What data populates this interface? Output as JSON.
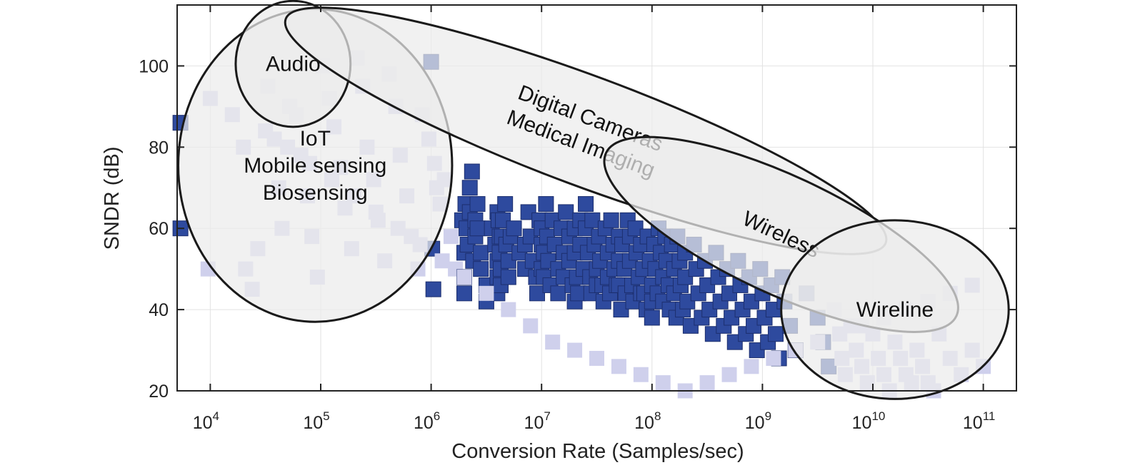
{
  "colors": {
    "point_fill": "#2e4a9e",
    "point_stroke": "#1d2f6e",
    "point_faded": "#cfd0ec",
    "ellipse_fill": "#ebebeb",
    "ellipse_stroke": "#1a1a1a",
    "grid": "#e2e2e2",
    "axis": "#222222"
  },
  "chart_data": {
    "type": "scatter",
    "title": "",
    "xlabel": "Conversion Rate (Samples/sec)",
    "ylabel": "SNDR (dB)",
    "xscale": "log",
    "xlim_log10": [
      3.7,
      11.3
    ],
    "ylim": [
      20,
      115
    ],
    "grid": true,
    "marker": "square",
    "xticks": [
      {
        "base": "10",
        "exp": "4",
        "log10": 4
      },
      {
        "base": "10",
        "exp": "5",
        "log10": 5
      },
      {
        "base": "10",
        "exp": "6",
        "log10": 6
      },
      {
        "base": "10",
        "exp": "7",
        "log10": 7
      },
      {
        "base": "10",
        "exp": "8",
        "log10": 8
      },
      {
        "base": "10",
        "exp": "9",
        "log10": 9
      },
      {
        "base": "10",
        "exp": "10",
        "log10": 10
      },
      {
        "base": "10",
        "exp": "11",
        "log10": 11
      }
    ],
    "yticks": [
      {
        "label": "20",
        "value": 20
      },
      {
        "label": "40",
        "value": 40
      },
      {
        "label": "60",
        "value": 60
      },
      {
        "label": "80",
        "value": 80
      },
      {
        "label": "100",
        "value": 100
      }
    ],
    "regions": [
      {
        "name": "iot",
        "lines": [
          "IoT",
          "Mobile sensing",
          "Biosensing"
        ],
        "center_log10x": 4.95,
        "center_y": 75.5,
        "radius_decades": 1.24,
        "radius_db": 38.5,
        "angle_deg": 0
      },
      {
        "name": "audio",
        "lines": [
          "Audio"
        ],
        "center_log10x": 4.75,
        "center_y": 100.5,
        "radius_decades": 0.52,
        "radius_db": 15.5,
        "angle_deg": 0
      },
      {
        "name": "cameras",
        "lines": [
          "Digital Cameras",
          "Medical Imaging"
        ],
        "center_log10x": 7.4,
        "center_y": 84,
        "radius_decades": 2.9,
        "radius_db": 13.5,
        "angle_deg": 20.5
      },
      {
        "name": "wireless",
        "lines": [
          "Wireless"
        ],
        "center_log10x": 9.17,
        "center_y": 58.5,
        "radius_decades": 1.75,
        "radius_db": 14.5,
        "angle_deg": 25
      },
      {
        "name": "wireline",
        "lines": [
          "Wireline"
        ],
        "center_log10x": 10.2,
        "center_y": 40,
        "radius_decades": 1.03,
        "radius_db": 22,
        "angle_deg": 0
      }
    ],
    "points_log10x": [
      3.73,
      3.73,
      3.98,
      4.3,
      4.32,
      4.38,
      4.43,
      4.52,
      4.58,
      4.62,
      4.65,
      4.72,
      4.78,
      4.82,
      4.88,
      4.92,
      4.97,
      5.02,
      5.08,
      5.12,
      5.18,
      5.22,
      5.28,
      5.33,
      5.38,
      5.42,
      5.48,
      5.52,
      5.58,
      5.62,
      5.68,
      5.72,
      5.78,
      5.82,
      5.88,
      5.92,
      5.98,
      6.0,
      6.01,
      6.02,
      6.03,
      6.05,
      6.08,
      6.12,
      6.18,
      6.22,
      6.28,
      6.3,
      6.3,
      6.3,
      6.31,
      6.32,
      6.33,
      6.35,
      6.35,
      6.37,
      6.38,
      6.4,
      6.4,
      6.42,
      6.42,
      6.45,
      6.45,
      6.5,
      6.5,
      6.55,
      6.58,
      6.6,
      6.6,
      6.6,
      6.6,
      6.61,
      6.62,
      6.62,
      6.63,
      6.63,
      6.64,
      6.65,
      6.67,
      6.68,
      6.7,
      6.7,
      6.72,
      6.75,
      6.8,
      6.85,
      6.85,
      6.88,
      6.9,
      6.92,
      6.95,
      6.96,
      6.98,
      7.0,
      7.0,
      7.0,
      7.02,
      7.02,
      7.04,
      7.05,
      7.06,
      7.08,
      7.1,
      7.12,
      7.15,
      7.15,
      7.18,
      7.2,
      7.2,
      7.22,
      7.25,
      7.25,
      7.28,
      7.3,
      7.3,
      7.3,
      7.32,
      7.33,
      7.35,
      7.35,
      7.38,
      7.4,
      7.4,
      7.42,
      7.44,
      7.45,
      7.46,
      7.48,
      7.5,
      7.5,
      7.52,
      7.53,
      7.55,
      7.56,
      7.58,
      7.6,
      7.6,
      7.62,
      7.63,
      7.65,
      7.66,
      7.68,
      7.7,
      7.7,
      7.7,
      7.72,
      7.73,
      7.75,
      7.76,
      7.78,
      7.8,
      7.8,
      7.82,
      7.83,
      7.85,
      7.86,
      7.88,
      7.9,
      7.9,
      7.92,
      7.93,
      7.95,
      7.96,
      7.98,
      8.0,
      8.0,
      8.0,
      8.02,
      8.03,
      8.05,
      8.06,
      8.08,
      8.1,
      8.1,
      8.12,
      8.13,
      8.15,
      8.16,
      8.18,
      8.2,
      8.2,
      8.22,
      8.23,
      8.25,
      8.26,
      8.28,
      8.3,
      8.3,
      8.32,
      8.35,
      8.38,
      8.4,
      8.42,
      8.45,
      8.48,
      8.5,
      8.52,
      8.55,
      8.58,
      8.6,
      8.62,
      8.65,
      8.68,
      8.7,
      8.72,
      8.75,
      8.78,
      8.8,
      8.82,
      8.85,
      8.88,
      8.9,
      8.92,
      8.95,
      8.98,
      9.0,
      9.02,
      9.05,
      9.08,
      9.1,
      9.12,
      9.15,
      9.18,
      9.2,
      9.25,
      9.3,
      9.4,
      9.5,
      9.55,
      9.6,
      9.65,
      9.7,
      9.72,
      9.75,
      9.8,
      9.85,
      9.9,
      9.95,
      10.0,
      10.05,
      10.1,
      10.15,
      10.2,
      10.25,
      10.3,
      10.35,
      10.4,
      10.45,
      10.5,
      10.55,
      10.6,
      10.7,
      10.8,
      10.9,
      11.0,
      4.0,
      4.2,
      4.5,
      4.7,
      4.9,
      5.1,
      5.3,
      5.5,
      5.7,
      5.9,
      6.1,
      6.3,
      6.5,
      6.7,
      6.9,
      7.1,
      7.3,
      7.5,
      7.7,
      7.9,
      8.1,
      8.3,
      8.5,
      8.7,
      8.9,
      9.1,
      9.3,
      9.5,
      9.7,
      9.9,
      10.1,
      10.3,
      10.5,
      10.7,
      10.9
    ],
    "points_y": [
      86,
      60,
      50,
      80,
      50,
      45,
      55,
      95,
      82,
      70,
      60,
      90,
      88,
      78,
      68,
      58,
      48,
      100,
      92,
      85,
      75,
      65,
      55,
      102,
      95,
      80,
      72,
      62,
      52,
      98,
      90,
      78,
      68,
      58,
      50,
      88,
      82,
      101,
      55,
      45,
      76,
      70,
      66,
      72,
      58,
      50,
      62,
      54,
      48,
      44,
      66,
      60,
      56,
      70,
      64,
      74,
      52,
      58,
      62,
      66,
      60,
      54,
      50,
      46,
      42,
      60,
      56,
      64,
      52,
      48,
      44,
      62,
      58,
      54,
      50,
      46,
      58,
      62,
      66,
      56,
      52,
      48,
      58,
      60,
      54,
      50,
      56,
      64,
      58,
      52,
      48,
      44,
      62,
      56,
      50,
      60,
      54,
      48,
      66,
      58,
      52,
      46,
      62,
      56,
      50,
      44,
      60,
      54,
      48,
      64,
      58,
      52,
      46,
      42,
      60,
      54,
      48,
      44,
      62,
      56,
      50,
      66,
      60,
      54,
      48,
      44,
      62,
      56,
      50,
      46,
      58,
      52,
      46,
      42,
      60,
      54,
      48,
      44,
      62,
      56,
      50,
      46,
      58,
      52,
      46,
      40,
      56,
      50,
      44,
      62,
      58,
      52,
      46,
      42,
      60,
      54,
      48,
      44,
      56,
      50,
      44,
      40,
      58,
      52,
      46,
      42,
      38,
      56,
      50,
      44,
      60,
      54,
      48,
      42,
      58,
      52,
      46,
      40,
      56,
      50,
      44,
      38,
      58,
      52,
      46,
      40,
      54,
      48,
      42,
      36,
      56,
      50,
      44,
      38,
      52,
      46,
      40,
      34,
      54,
      48,
      42,
      36,
      50,
      44,
      38,
      32,
      52,
      46,
      40,
      34,
      48,
      42,
      36,
      30,
      50,
      44,
      38,
      32,
      46,
      40,
      34,
      28,
      48,
      42,
      36,
      30,
      44,
      38,
      32,
      26,
      40,
      34,
      28,
      24,
      36,
      30,
      26,
      22,
      34,
      28,
      24,
      20,
      32,
      28,
      24,
      22,
      30,
      26,
      22,
      20,
      34,
      28,
      24,
      30,
      26,
      92,
      88,
      84,
      80,
      76,
      72,
      68,
      64,
      60,
      56,
      52,
      48,
      44,
      40,
      36,
      32,
      30,
      28,
      26,
      24,
      22,
      20,
      22,
      24,
      26,
      28,
      30,
      32,
      34,
      36,
      38,
      40,
      42,
      44,
      46
    ],
    "points_faded_flags": [
      0,
      0,
      1,
      1,
      1,
      1,
      1,
      1,
      1,
      1,
      1,
      1,
      1,
      1,
      1,
      1,
      1,
      1,
      1,
      1,
      1,
      1,
      1,
      1,
      1,
      1,
      1,
      1,
      1,
      1,
      1,
      1,
      1,
      1,
      1,
      1,
      1,
      0,
      0,
      0,
      1,
      1,
      1,
      1,
      1,
      1,
      0,
      0,
      0,
      0,
      0,
      0,
      0,
      0,
      0,
      0,
      0,
      0,
      0,
      0,
      0,
      0,
      0,
      0,
      0,
      0,
      0,
      0,
      0,
      0,
      0,
      0,
      0,
      0,
      0,
      0,
      0,
      0,
      0,
      0,
      0,
      0,
      0,
      0,
      0,
      0,
      0,
      0,
      0,
      0,
      0,
      0,
      0,
      0,
      0,
      0,
      0,
      0,
      0,
      0,
      0,
      0,
      0,
      0,
      0,
      0,
      0,
      0,
      0,
      0,
      0,
      0,
      0,
      0,
      0,
      0,
      0,
      0,
      0,
      0,
      0,
      0,
      0,
      0,
      0,
      0,
      0,
      0,
      0,
      0,
      0,
      0,
      0,
      0,
      0,
      0,
      0,
      0,
      0,
      0,
      0,
      0,
      0,
      0,
      0,
      0,
      0,
      0,
      0,
      0,
      0,
      0,
      0,
      0,
      0,
      0,
      0,
      0,
      0,
      0,
      0,
      0,
      0,
      0,
      0,
      0,
      0,
      0,
      0,
      0,
      0,
      0,
      0,
      0,
      0,
      0,
      0,
      0,
      0,
      0,
      0,
      0,
      0,
      0,
      0,
      0,
      0,
      0,
      0,
      0,
      0,
      0,
      0,
      0,
      0,
      0,
      0,
      0,
      0,
      0,
      0,
      0,
      0,
      0,
      0,
      0,
      0,
      0,
      0,
      0,
      0,
      0,
      0,
      0,
      0,
      0,
      0,
      0,
      0,
      0,
      0,
      0,
      0,
      0,
      0,
      0,
      0,
      0,
      0,
      0,
      1,
      1,
      1,
      1,
      1,
      1,
      1,
      1,
      1,
      1,
      1,
      1,
      1,
      1,
      1,
      1,
      1,
      1,
      1,
      1,
      1,
      1,
      1,
      1,
      1,
      1,
      1,
      1,
      1,
      1,
      1,
      1,
      1,
      1,
      1,
      1,
      1,
      1,
      1,
      1,
      1,
      1,
      1,
      1,
      1,
      1,
      1,
      1,
      1,
      1,
      1,
      1,
      1,
      1,
      1,
      1,
      1,
      1,
      1,
      1,
      1,
      1,
      1,
      1,
      1,
      1,
      1,
      1,
      1,
      1,
      1,
      1,
      1
    ]
  }
}
